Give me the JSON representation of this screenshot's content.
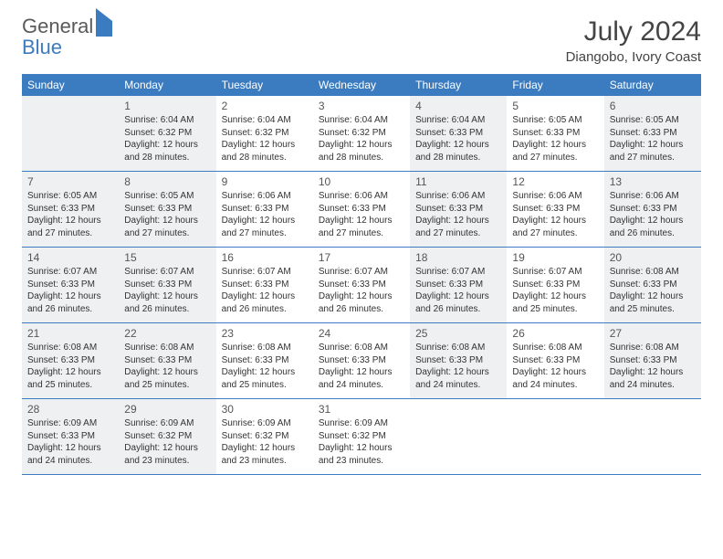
{
  "brand": {
    "word1": "General",
    "word2": "Blue"
  },
  "title": "July 2024",
  "location": "Diangobo, Ivory Coast",
  "colors": {
    "header_bg": "#3b7bbf",
    "shaded_bg": "#eef0f2",
    "text": "#333333",
    "title_text": "#444444",
    "border": "#3b7bbf"
  },
  "weekdays": [
    "Sunday",
    "Monday",
    "Tuesday",
    "Wednesday",
    "Thursday",
    "Friday",
    "Saturday"
  ],
  "weeks": [
    [
      {
        "blank": true,
        "shaded": true
      },
      {
        "day": "1",
        "shaded": true,
        "sunrise": "Sunrise: 6:04 AM",
        "sunset": "Sunset: 6:32 PM",
        "daylight": "Daylight: 12 hours and 28 minutes."
      },
      {
        "day": "2",
        "shaded": false,
        "sunrise": "Sunrise: 6:04 AM",
        "sunset": "Sunset: 6:32 PM",
        "daylight": "Daylight: 12 hours and 28 minutes."
      },
      {
        "day": "3",
        "shaded": false,
        "sunrise": "Sunrise: 6:04 AM",
        "sunset": "Sunset: 6:32 PM",
        "daylight": "Daylight: 12 hours and 28 minutes."
      },
      {
        "day": "4",
        "shaded": true,
        "sunrise": "Sunrise: 6:04 AM",
        "sunset": "Sunset: 6:33 PM",
        "daylight": "Daylight: 12 hours and 28 minutes."
      },
      {
        "day": "5",
        "shaded": false,
        "sunrise": "Sunrise: 6:05 AM",
        "sunset": "Sunset: 6:33 PM",
        "daylight": "Daylight: 12 hours and 27 minutes."
      },
      {
        "day": "6",
        "shaded": true,
        "sunrise": "Sunrise: 6:05 AM",
        "sunset": "Sunset: 6:33 PM",
        "daylight": "Daylight: 12 hours and 27 minutes."
      }
    ],
    [
      {
        "day": "7",
        "shaded": true,
        "sunrise": "Sunrise: 6:05 AM",
        "sunset": "Sunset: 6:33 PM",
        "daylight": "Daylight: 12 hours and 27 minutes."
      },
      {
        "day": "8",
        "shaded": true,
        "sunrise": "Sunrise: 6:05 AM",
        "sunset": "Sunset: 6:33 PM",
        "daylight": "Daylight: 12 hours and 27 minutes."
      },
      {
        "day": "9",
        "shaded": false,
        "sunrise": "Sunrise: 6:06 AM",
        "sunset": "Sunset: 6:33 PM",
        "daylight": "Daylight: 12 hours and 27 minutes."
      },
      {
        "day": "10",
        "shaded": false,
        "sunrise": "Sunrise: 6:06 AM",
        "sunset": "Sunset: 6:33 PM",
        "daylight": "Daylight: 12 hours and 27 minutes."
      },
      {
        "day": "11",
        "shaded": true,
        "sunrise": "Sunrise: 6:06 AM",
        "sunset": "Sunset: 6:33 PM",
        "daylight": "Daylight: 12 hours and 27 minutes."
      },
      {
        "day": "12",
        "shaded": false,
        "sunrise": "Sunrise: 6:06 AM",
        "sunset": "Sunset: 6:33 PM",
        "daylight": "Daylight: 12 hours and 27 minutes."
      },
      {
        "day": "13",
        "shaded": true,
        "sunrise": "Sunrise: 6:06 AM",
        "sunset": "Sunset: 6:33 PM",
        "daylight": "Daylight: 12 hours and 26 minutes."
      }
    ],
    [
      {
        "day": "14",
        "shaded": true,
        "sunrise": "Sunrise: 6:07 AM",
        "sunset": "Sunset: 6:33 PM",
        "daylight": "Daylight: 12 hours and 26 minutes."
      },
      {
        "day": "15",
        "shaded": true,
        "sunrise": "Sunrise: 6:07 AM",
        "sunset": "Sunset: 6:33 PM",
        "daylight": "Daylight: 12 hours and 26 minutes."
      },
      {
        "day": "16",
        "shaded": false,
        "sunrise": "Sunrise: 6:07 AM",
        "sunset": "Sunset: 6:33 PM",
        "daylight": "Daylight: 12 hours and 26 minutes."
      },
      {
        "day": "17",
        "shaded": false,
        "sunrise": "Sunrise: 6:07 AM",
        "sunset": "Sunset: 6:33 PM",
        "daylight": "Daylight: 12 hours and 26 minutes."
      },
      {
        "day": "18",
        "shaded": true,
        "sunrise": "Sunrise: 6:07 AM",
        "sunset": "Sunset: 6:33 PM",
        "daylight": "Daylight: 12 hours and 26 minutes."
      },
      {
        "day": "19",
        "shaded": false,
        "sunrise": "Sunrise: 6:07 AM",
        "sunset": "Sunset: 6:33 PM",
        "daylight": "Daylight: 12 hours and 25 minutes."
      },
      {
        "day": "20",
        "shaded": true,
        "sunrise": "Sunrise: 6:08 AM",
        "sunset": "Sunset: 6:33 PM",
        "daylight": "Daylight: 12 hours and 25 minutes."
      }
    ],
    [
      {
        "day": "21",
        "shaded": true,
        "sunrise": "Sunrise: 6:08 AM",
        "sunset": "Sunset: 6:33 PM",
        "daylight": "Daylight: 12 hours and 25 minutes."
      },
      {
        "day": "22",
        "shaded": true,
        "sunrise": "Sunrise: 6:08 AM",
        "sunset": "Sunset: 6:33 PM",
        "daylight": "Daylight: 12 hours and 25 minutes."
      },
      {
        "day": "23",
        "shaded": false,
        "sunrise": "Sunrise: 6:08 AM",
        "sunset": "Sunset: 6:33 PM",
        "daylight": "Daylight: 12 hours and 25 minutes."
      },
      {
        "day": "24",
        "shaded": false,
        "sunrise": "Sunrise: 6:08 AM",
        "sunset": "Sunset: 6:33 PM",
        "daylight": "Daylight: 12 hours and 24 minutes."
      },
      {
        "day": "25",
        "shaded": true,
        "sunrise": "Sunrise: 6:08 AM",
        "sunset": "Sunset: 6:33 PM",
        "daylight": "Daylight: 12 hours and 24 minutes."
      },
      {
        "day": "26",
        "shaded": false,
        "sunrise": "Sunrise: 6:08 AM",
        "sunset": "Sunset: 6:33 PM",
        "daylight": "Daylight: 12 hours and 24 minutes."
      },
      {
        "day": "27",
        "shaded": true,
        "sunrise": "Sunrise: 6:08 AM",
        "sunset": "Sunset: 6:33 PM",
        "daylight": "Daylight: 12 hours and 24 minutes."
      }
    ],
    [
      {
        "day": "28",
        "shaded": true,
        "sunrise": "Sunrise: 6:09 AM",
        "sunset": "Sunset: 6:33 PM",
        "daylight": "Daylight: 12 hours and 24 minutes."
      },
      {
        "day": "29",
        "shaded": true,
        "sunrise": "Sunrise: 6:09 AM",
        "sunset": "Sunset: 6:32 PM",
        "daylight": "Daylight: 12 hours and 23 minutes."
      },
      {
        "day": "30",
        "shaded": false,
        "sunrise": "Sunrise: 6:09 AM",
        "sunset": "Sunset: 6:32 PM",
        "daylight": "Daylight: 12 hours and 23 minutes."
      },
      {
        "day": "31",
        "shaded": false,
        "sunrise": "Sunrise: 6:09 AM",
        "sunset": "Sunset: 6:32 PM",
        "daylight": "Daylight: 12 hours and 23 minutes."
      },
      {
        "blank": true,
        "shaded": false
      },
      {
        "blank": true,
        "shaded": false
      },
      {
        "blank": true,
        "shaded": false
      }
    ]
  ]
}
